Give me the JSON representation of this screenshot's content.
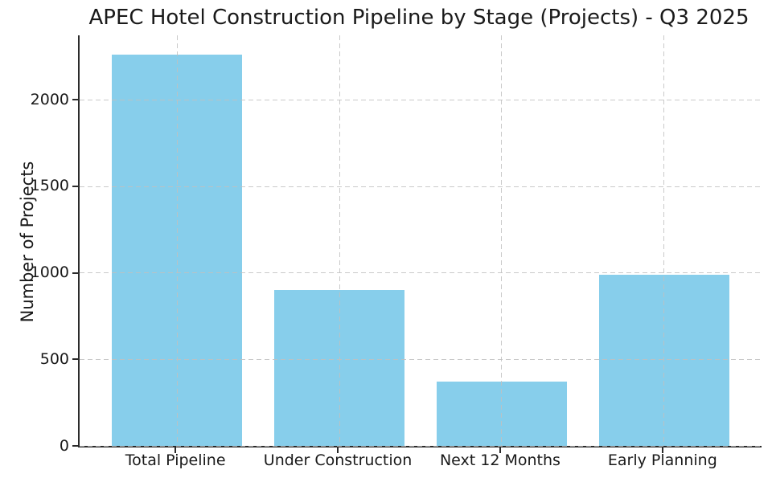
{
  "chart_data": {
    "type": "bar",
    "title": "APEC Hotel Construction Pipeline by Stage (Projects) - Q3 2025",
    "xlabel": "",
    "ylabel": "Number of Projects",
    "categories": [
      "Total Pipeline",
      "Under Construction",
      "Next 12 Months",
      "Early Planning"
    ],
    "values": [
      2260,
      900,
      370,
      990
    ],
    "yticks": [
      0,
      500,
      1000,
      1500,
      2000
    ],
    "ylim": [
      0,
      2373
    ],
    "bar_color": "#87CEEB",
    "grid": {
      "show": true,
      "axes": "both",
      "style": "dashed",
      "above_bars": true
    },
    "legend_position": "none",
    "spines": [
      "left",
      "bottom"
    ]
  },
  "style": {
    "text_color": "#1a1a1a",
    "spine_color": "#2b2b2b",
    "grid_color": "#c0c0c0",
    "background_color": "#ffffff"
  }
}
